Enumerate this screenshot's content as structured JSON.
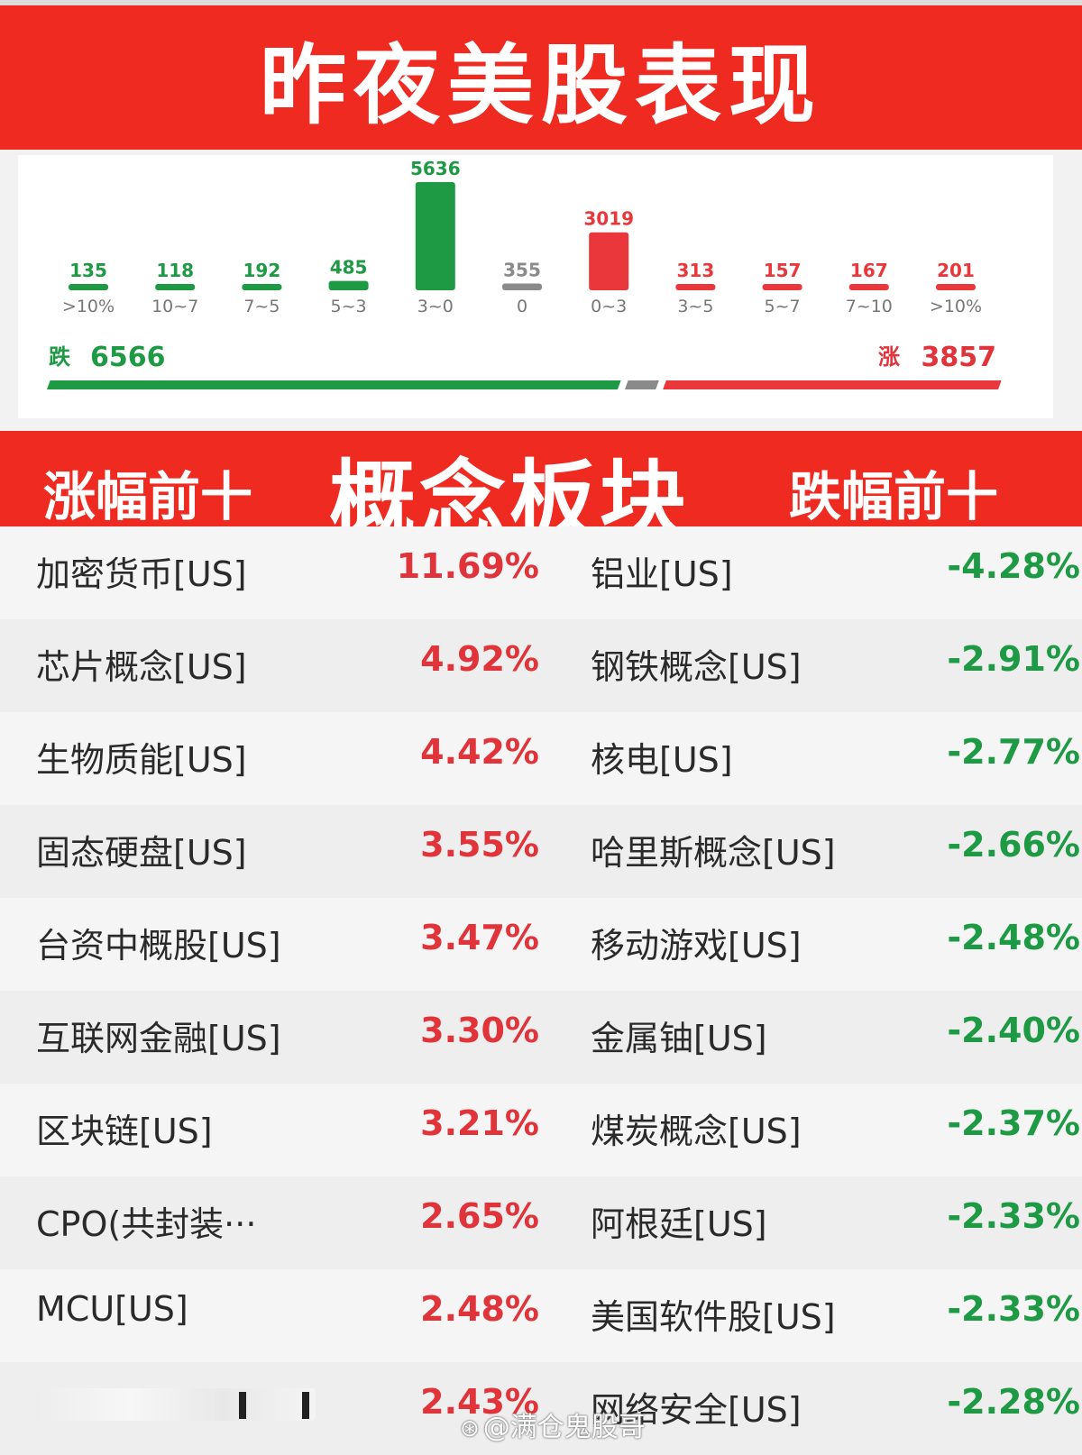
{
  "title": "昨夜美股表现",
  "colors": {
    "red": "#ef2a21",
    "up": "#e0333a",
    "down": "#1e9a45",
    "flat": "#8a8a8a"
  },
  "chart_data": {
    "type": "bar",
    "categories": [
      ">10%",
      "10~7",
      "7~5",
      "5~3",
      "3~0",
      "0",
      "0~3",
      "3~5",
      "5~7",
      "7~10",
      ">10%"
    ],
    "values": [
      135,
      118,
      192,
      485,
      5636,
      355,
      3019,
      313,
      157,
      167,
      201
    ],
    "bar_colors": [
      "green",
      "green",
      "green",
      "green",
      "green",
      "gray",
      "red",
      "red",
      "red",
      "red",
      "red"
    ],
    "summary": {
      "fall_label": "跌",
      "fall_count": "6566",
      "rise_label": "涨",
      "rise_count": "3857"
    }
  },
  "concept": {
    "rise_title": "涨幅前十",
    "center_title": "概念板块",
    "fall_title": "跌幅前十",
    "rows": [
      {
        "up_name": "加密货币[US]",
        "up_val": "11.69%",
        "down_name": "铝业[US]",
        "down_val": "-4.28%"
      },
      {
        "up_name": "芯片概念[US]",
        "up_val": "4.92%",
        "down_name": "钢铁概念[US]",
        "down_val": "-2.91%"
      },
      {
        "up_name": "生物质能[US]",
        "up_val": "4.42%",
        "down_name": "核电[US]",
        "down_val": "-2.77%"
      },
      {
        "up_name": "固态硬盘[US]",
        "up_val": "3.55%",
        "down_name": "哈里斯概念[US]",
        "down_val": "-2.66%"
      },
      {
        "up_name": "台资中概股[US]",
        "up_val": "3.47%",
        "down_name": "移动游戏[US]",
        "down_val": "-2.48%"
      },
      {
        "up_name": "互联网金融[US]",
        "up_val": "3.30%",
        "down_name": "金属铀[US]",
        "down_val": "-2.40%"
      },
      {
        "up_name": "区块链[US]",
        "up_val": "3.21%",
        "down_name": "煤炭概念[US]",
        "down_val": "-2.37%"
      },
      {
        "up_name": "CPO(共封装···",
        "up_val": "2.65%",
        "down_name": "阿根廷[US]",
        "down_val": "-2.33%"
      },
      {
        "up_name": "MCU[US]",
        "up_val": "2.48%",
        "down_name": "美国软件股[US]",
        "down_val": "-2.33%"
      },
      {
        "up_name": "",
        "up_val": "2.43%",
        "down_name": "网络安全[US]",
        "down_val": "-2.28%"
      }
    ]
  },
  "watermark": "@满仓鬼股哥"
}
